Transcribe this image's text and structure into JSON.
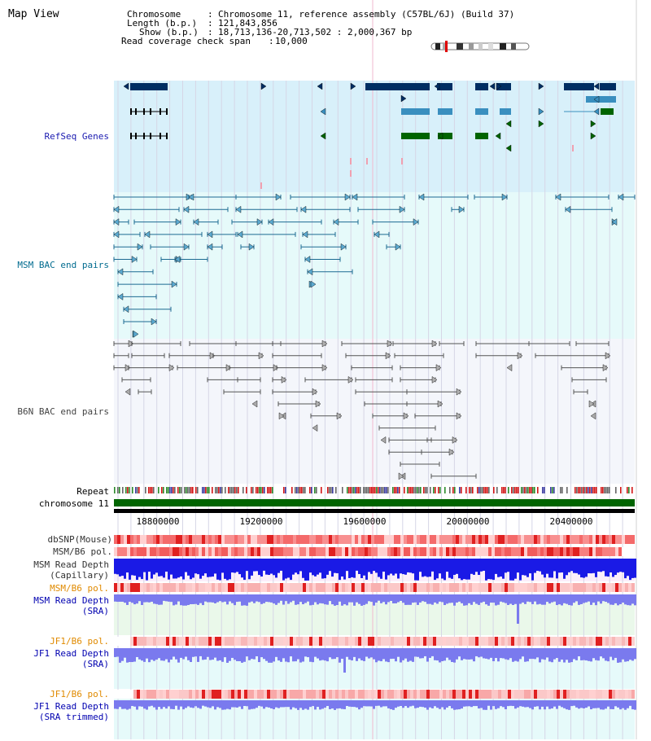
{
  "header": {
    "title": "Map View",
    "chromosome_label": "Chromosome",
    "chromosome_value": "Chromosome 11, reference assembly (C57BL/6J) (Build 37)",
    "length_label": "Length (b.p.)",
    "length_value": "121,843,856",
    "show_label": "Show (b.p.)",
    "show_value": "18,713,136-20,713,502 : 2,000,367 bp",
    "read_span_label": "Read coverage check span",
    "read_span_value": "10,000"
  },
  "tracks": {
    "refseq": "RefSeq Genes",
    "msm_bac": "MSM BAC end pairs",
    "b6n_bac": "B6N BAC end pairs",
    "repeat": "Repeat",
    "chromosome": "chromosome 11",
    "dbsnp": "dbSNP(Mouse)",
    "msm_b6_pol_1": "MSM/B6 pol.",
    "msm_read_depth_cap_1": "MSM Read Depth",
    "msm_read_depth_cap_2": "(Capillary)",
    "msm_b6_pol_2": "MSM/B6 pol.",
    "msm_read_depth_sra_1": "MSM Read Depth",
    "msm_read_depth_sra_2": "(SRA)",
    "jf1_b6_pol_1": "JF1/B6 pol.",
    "jf1_read_depth_sra_1": "JF1 Read Depth",
    "jf1_read_depth_sra_2": "(SRA)",
    "jf1_b6_pol_2": "JF1/B6 pol.",
    "jf1_read_depth_trim_1": "JF1 Read Depth",
    "jf1_read_depth_trim_2": "(SRA trimmed)"
  },
  "axis": {
    "ticks": [
      "18800000",
      "19200000",
      "19600000",
      "20000000",
      "20400000"
    ]
  },
  "colors": {
    "refseq_bg": "#d8f0fa",
    "msm_bg": "#e6fafa",
    "b6n_bg": "#f4f6fb",
    "gene_dark": "#002e63",
    "gene_mid": "#3a8fbf",
    "gene_green": "#006400",
    "msm_feature": "#1c6a92",
    "b6n_feature": "#555555",
    "chromosome_bar": "#006400",
    "msm_label": "#006b8f",
    "sra_label": "#0000b0",
    "pol_orange": "#e08a00",
    "depth_blue": "#1a1ae6",
    "depth_light_blue": "#7a7aee"
  }
}
